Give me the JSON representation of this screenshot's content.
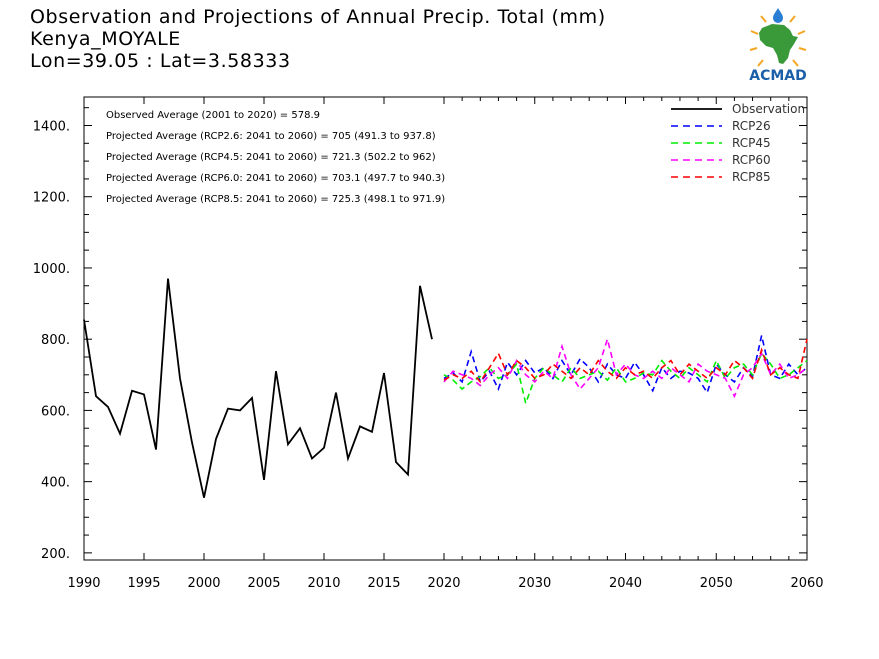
{
  "title": {
    "line1": "Observation and Projections of Annual Precip. Total (mm)",
    "line2": "Kenya_MOYALE",
    "line3": "Lon=39.05 : Lat=3.58333"
  },
  "logo": {
    "text": "ACMAD"
  },
  "annotations": [
    "Observed Average (2001 to 2020) = 578.9",
    "Projected Average (RCP2.6: 2041 to 2060) = 705 (491.3 to 937.8)",
    "Projected Average (RCP4.5: 2041 to 2060) = 721.3 (502.2 to 962)",
    "Projected Average (RCP6.0: 2041 to 2060) = 703.1 (497.7 to 940.3)",
    "Projected Average (RCP8.5: 2041 to 2060) = 725.3 (498.1 to 971.9)"
  ],
  "chart_data": {
    "type": "line",
    "xlim": [
      1990,
      2060
    ],
    "ylim": [
      180,
      1480
    ],
    "x_ticks_early": [
      1990,
      1995,
      2000,
      2005,
      2010,
      2015,
      2020
    ],
    "x_ticks_late": [
      2030,
      2040,
      2050,
      2060
    ],
    "x_tick_labels": [
      "1990",
      "1995",
      "2000",
      "2005",
      "2010",
      "2015",
      "2020",
      "2030",
      "2040",
      "2050",
      "2060"
    ],
    "y_ticks": [
      200,
      400,
      600,
      800,
      1000,
      1200,
      1400
    ],
    "y_tick_labels": [
      "200.",
      "400.",
      "600.",
      "800.",
      "1000.",
      "1200.",
      "1400."
    ],
    "legend_position": "top-right",
    "series": [
      {
        "name": "Observation",
        "color": "#000000",
        "dashed": false,
        "x": [
          1990,
          1991,
          1992,
          1993,
          1994,
          1995,
          1996,
          1997,
          1998,
          1999,
          2000,
          2001,
          2002,
          2003,
          2004,
          2005,
          2006,
          2007,
          2008,
          2009,
          2010,
          2011,
          2012,
          2013,
          2014,
          2015,
          2016,
          2017,
          2018,
          2019,
          2020
        ],
        "y": [
          855,
          640,
          610,
          535,
          655,
          645,
          490,
          970,
          690,
          510,
          355,
          520,
          605,
          600,
          635,
          405,
          710,
          505,
          550,
          465,
          495,
          650,
          465,
          555,
          540,
          705,
          455,
          420,
          950,
          800,
          null
        ]
      },
      {
        "name": "RCP26",
        "color": "#0000ff",
        "dashed": true,
        "x": [
          2020,
          2021,
          2022,
          2023,
          2024,
          2025,
          2026,
          2027,
          2028,
          2029,
          2030,
          2031,
          2032,
          2033,
          2034,
          2035,
          2036,
          2037,
          2038,
          2039,
          2040,
          2041,
          2042,
          2043,
          2044,
          2045,
          2046,
          2047,
          2048,
          2049,
          2050,
          2051,
          2052,
          2053,
          2054,
          2055,
          2056,
          2057,
          2058,
          2059,
          2060
        ],
        "y": [
          690,
          705,
          680,
          765,
          680,
          710,
          660,
          735,
          700,
          740,
          705,
          720,
          690,
          740,
          700,
          745,
          720,
          680,
          730,
          700,
          690,
          735,
          700,
          655,
          720,
          690,
          710,
          705,
          690,
          650,
          730,
          700,
          680,
          720,
          695,
          810,
          700,
          690,
          730,
          700,
          720
        ]
      },
      {
        "name": "RCP45",
        "color": "#00ee00",
        "dashed": true,
        "x": [
          2020,
          2021,
          2022,
          2023,
          2024,
          2025,
          2026,
          2027,
          2028,
          2029,
          2030,
          2031,
          2032,
          2033,
          2034,
          2035,
          2036,
          2037,
          2038,
          2039,
          2040,
          2041,
          2042,
          2043,
          2044,
          2045,
          2046,
          2047,
          2048,
          2049,
          2050,
          2051,
          2052,
          2053,
          2054,
          2055,
          2056,
          2057,
          2058,
          2059,
          2060
        ],
        "y": [
          700,
          685,
          660,
          680,
          695,
          720,
          690,
          700,
          730,
          620,
          690,
          720,
          700,
          680,
          720,
          690,
          700,
          710,
          685,
          720,
          680,
          690,
          705,
          700,
          740,
          710,
          690,
          720,
          700,
          680,
          740,
          690,
          720,
          730,
          700,
          760,
          730,
          690,
          700,
          720,
          740
        ]
      },
      {
        "name": "RCP60",
        "color": "#ff00ff",
        "dashed": true,
        "x": [
          2020,
          2021,
          2022,
          2023,
          2024,
          2025,
          2026,
          2027,
          2028,
          2029,
          2030,
          2031,
          2032,
          2033,
          2034,
          2035,
          2036,
          2037,
          2038,
          2039,
          2040,
          2041,
          2042,
          2043,
          2044,
          2045,
          2046,
          2047,
          2048,
          2049,
          2050,
          2051,
          2052,
          2053,
          2054,
          2055,
          2056,
          2057,
          2058,
          2059,
          2060
        ],
        "y": [
          680,
          710,
          700,
          690,
          670,
          700,
          720,
          690,
          740,
          700,
          680,
          710,
          690,
          780,
          700,
          660,
          690,
          720,
          800,
          700,
          730,
          700,
          690,
          710,
          690,
          720,
          700,
          680,
          730,
          710,
          700,
          690,
          640,
          700,
          720,
          760,
          700,
          730,
          690,
          700,
          720
        ]
      },
      {
        "name": "RCP85",
        "color": "#ff0000",
        "dashed": true,
        "x": [
          2020,
          2021,
          2022,
          2023,
          2024,
          2025,
          2026,
          2027,
          2028,
          2029,
          2030,
          2031,
          2032,
          2033,
          2034,
          2035,
          2036,
          2037,
          2038,
          2039,
          2040,
          2041,
          2042,
          2043,
          2044,
          2045,
          2046,
          2047,
          2048,
          2049,
          2050,
          2051,
          2052,
          2053,
          2054,
          2055,
          2056,
          2057,
          2058,
          2059,
          2060
        ],
        "y": [
          685,
          700,
          690,
          710,
          680,
          720,
          760,
          700,
          740,
          720,
          690,
          700,
          730,
          710,
          690,
          720,
          700,
          740,
          710,
          690,
          720,
          700,
          710,
          690,
          720,
          740,
          700,
          730,
          710,
          690,
          720,
          700,
          740,
          720,
          690,
          770,
          700,
          720,
          700,
          690,
          800
        ]
      }
    ]
  }
}
